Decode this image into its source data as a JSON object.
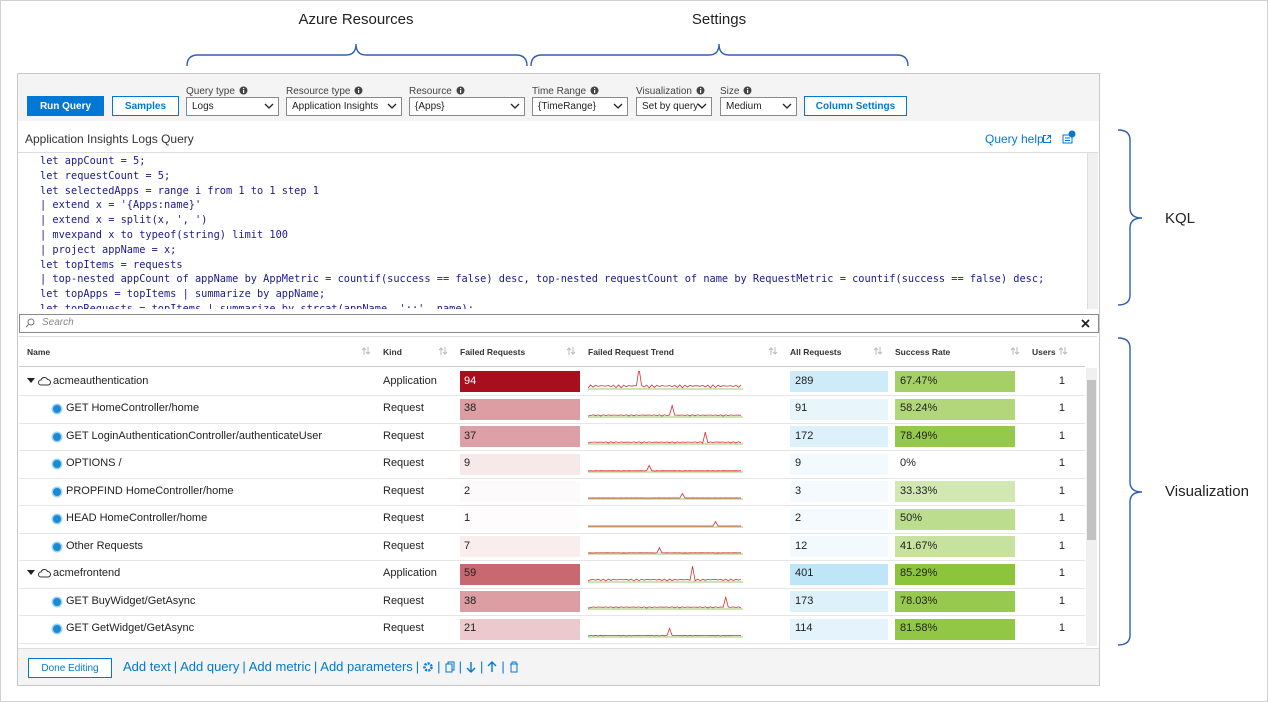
{
  "annotations": {
    "top": [
      "Azure Resources",
      "Settings"
    ],
    "right": [
      "KQL",
      "Visualization"
    ]
  },
  "toolbar": {
    "run_query": "Run Query",
    "samples": "Samples",
    "parameters": [
      {
        "label": "Query type",
        "value": "Logs"
      },
      {
        "label": "Resource type",
        "value": "Application Insights"
      },
      {
        "label": "Resource",
        "value": "{Apps}"
      },
      {
        "label": "Time Range",
        "value": "{TimeRange}"
      },
      {
        "label": "Visualization",
        "value": "Set by query"
      },
      {
        "label": "Size",
        "value": "Medium"
      }
    ],
    "column_settings": "Column Settings"
  },
  "editor": {
    "title": "Application Insights Logs Query",
    "help": "Query help",
    "lines": [
      "let appCount = 5;",
      "let requestCount = 5;",
      "let selectedApps = range i from 1 to 1 step 1",
      "| extend x = '{Apps:name}'",
      "| extend x = split(x, ', ')",
      "| mvexpand x to typeof(string) limit 100",
      "| project appName = x;",
      "let topItems = requests",
      "| top-nested appCount of appName by AppMetric = countif(success == false) desc, top-nested requestCount of name by RequestMetric = countif(success == false) desc;",
      "let topApps = topItems | summarize by appName;",
      "let topRequests = topItems | summarize by strcat(appName, '::', name);"
    ]
  },
  "search": {
    "placeholder": "Search"
  },
  "table": {
    "columns": [
      "Name",
      "Kind",
      "Failed Requests",
      "Failed Request Trend",
      "All Requests",
      "Success Rate",
      "Users"
    ],
    "rows": [
      {
        "group": true,
        "name": "acmeauthentication",
        "kind": "Application",
        "failed": 94,
        "all": 289,
        "success": {
          "value": 67.47,
          "label": "67.47%"
        },
        "users": 1
      },
      {
        "group": false,
        "name": "GET HomeController/home",
        "kind": "Request",
        "failed": 38,
        "all": 91,
        "success": {
          "value": 58.24,
          "label": "58.24%"
        },
        "users": 1
      },
      {
        "group": false,
        "name": "GET LoginAuthenticationController/authenticateUser",
        "kind": "Request",
        "failed": 37,
        "all": 172,
        "success": {
          "value": 78.49,
          "label": "78.49%"
        },
        "users": 1
      },
      {
        "group": false,
        "name": "OPTIONS /",
        "kind": "Request",
        "failed": 9,
        "all": 9,
        "success": {
          "value": 0,
          "label": "0%"
        },
        "users": 1
      },
      {
        "group": false,
        "name": "PROPFIND HomeController/home",
        "kind": "Request",
        "failed": 2,
        "all": 3,
        "success": {
          "value": 33.33,
          "label": "33.33%"
        },
        "users": 1
      },
      {
        "group": false,
        "name": "HEAD HomeController/home",
        "kind": "Request",
        "failed": 1,
        "all": 2,
        "success": {
          "value": 50,
          "label": "50%"
        },
        "users": 1
      },
      {
        "group": false,
        "name": "Other Requests",
        "kind": "Request",
        "failed": 7,
        "all": 12,
        "success": {
          "value": 41.67,
          "label": "41.67%"
        },
        "users": 1
      },
      {
        "group": true,
        "name": "acmefrontend",
        "kind": "Application",
        "failed": 59,
        "all": 401,
        "success": {
          "value": 85.29,
          "label": "85.29%"
        },
        "users": 1
      },
      {
        "group": false,
        "name": "GET BuyWidget/GetAsync",
        "kind": "Request",
        "failed": 38,
        "all": 173,
        "success": {
          "value": 78.03,
          "label": "78.03%"
        },
        "users": 1
      },
      {
        "group": false,
        "name": "GET GetWidget/GetAsync",
        "kind": "Request",
        "failed": 21,
        "all": 114,
        "success": {
          "value": 81.58,
          "label": "81.58%"
        },
        "users": 1
      }
    ]
  },
  "footer": {
    "done": "Done Editing",
    "links": [
      "Add text",
      "Add query",
      "Add metric",
      "Add parameters"
    ],
    "separator": "|"
  }
}
